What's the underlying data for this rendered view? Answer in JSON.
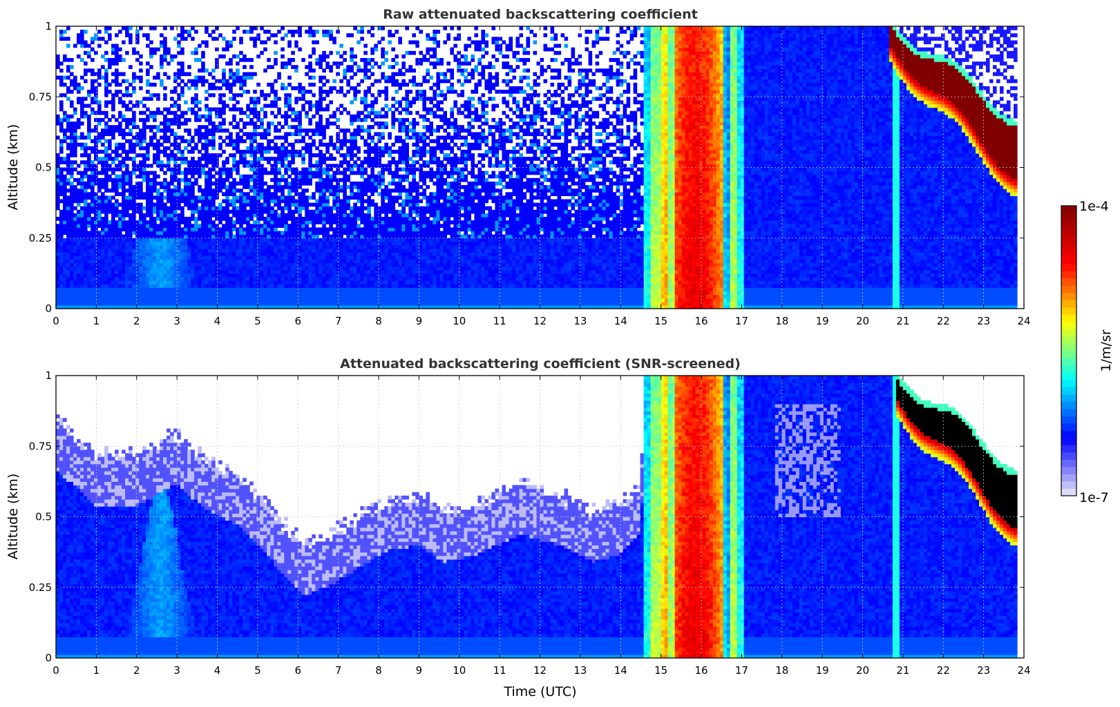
{
  "chart_data": [
    {
      "type": "heatmap",
      "title": "Raw attenuated backscattering coefficient",
      "ylabel": "Altitude (km)",
      "xlim": [
        0,
        24
      ],
      "ylim": [
        0,
        1
      ],
      "x_ticks": [
        "0",
        "1",
        "2",
        "3",
        "4",
        "5",
        "6",
        "7",
        "8",
        "9",
        "10",
        "11",
        "12",
        "13",
        "14",
        "15",
        "16",
        "17",
        "18",
        "19",
        "20",
        "21",
        "22",
        "23",
        "24"
      ],
      "y_ticks": [
        "0",
        "0.25",
        "0.5",
        "0.75",
        "1"
      ],
      "grid": true,
      "data_extent_x": [
        0,
        23.8
      ],
      "features": [
        {
          "name": "background",
          "x": [
            0,
            23.8
          ],
          "level": 0.22
        },
        {
          "name": "noise",
          "x": [
            0,
            14.6
          ],
          "y": [
            0.25,
            1.0
          ]
        },
        {
          "name": "boundary layer plume",
          "x": [
            1.6,
            3.4
          ],
          "y": [
            0,
            0.58
          ]
        },
        {
          "name": "cloud/precipitation",
          "x": [
            14.55,
            17.05
          ],
          "y": [
            0,
            1.0
          ],
          "level": 0.8
        },
        {
          "name": "descending cloud layer",
          "x": [
            20.7,
            23.8
          ],
          "y_top": [
            1.0,
            0.66
          ],
          "y_base": [
            0.98,
            0.47
          ],
          "level": 1.0
        }
      ]
    },
    {
      "type": "heatmap",
      "title": "Attenuated backscattering coefficient (SNR-screened)",
      "xlabel": "Time (UTC)",
      "ylabel": "Altitude (km)",
      "xlim": [
        0,
        24
      ],
      "ylim": [
        0,
        1
      ],
      "x_ticks": [
        "0",
        "1",
        "2",
        "3",
        "4",
        "5",
        "6",
        "7",
        "8",
        "9",
        "10",
        "11",
        "12",
        "13",
        "14",
        "15",
        "16",
        "17",
        "18",
        "19",
        "20",
        "21",
        "22",
        "23",
        "24"
      ],
      "y_ticks": [
        "0",
        "0.25",
        "0.5",
        "0.75",
        "1"
      ],
      "grid": true,
      "data_extent_x": [
        0,
        23.8
      ],
      "screened_top_km": [
        [
          0,
          0.85
        ],
        [
          1,
          0.72
        ],
        [
          2,
          0.72
        ],
        [
          3,
          0.8
        ],
        [
          3.6,
          0.72
        ],
        [
          4.5,
          0.65
        ],
        [
          5.2,
          0.55
        ],
        [
          5.8,
          0.45
        ],
        [
          6.2,
          0.4
        ],
        [
          6.8,
          0.44
        ],
        [
          7.5,
          0.5
        ],
        [
          8.2,
          0.56
        ],
        [
          9,
          0.58
        ],
        [
          9.6,
          0.52
        ],
        [
          10.5,
          0.55
        ],
        [
          11.5,
          0.62
        ],
        [
          12.5,
          0.58
        ],
        [
          13.3,
          0.52
        ],
        [
          14.0,
          0.55
        ],
        [
          14.5,
          0.62
        ],
        [
          14.6,
          1.0
        ],
        [
          23.8,
          1.0
        ]
      ],
      "clear_patch": {
        "x": [
          17.8,
          19.5
        ],
        "y": [
          0.5,
          0.9
        ]
      },
      "features": [
        {
          "name": "cloud/precipitation",
          "x": [
            14.55,
            17.05
          ],
          "y": [
            0,
            1.0
          ],
          "level": 0.8
        },
        {
          "name": "descending cloud layer (saturated)",
          "x": [
            20.8,
            23.8
          ],
          "y_top": [
            1.0,
            0.66
          ],
          "y_base": [
            0.98,
            0.47
          ],
          "level": 1.0
        }
      ]
    }
  ],
  "colorbar": {
    "label": "1/m/sr",
    "max_label": "1e-4",
    "min_label": "1e-7",
    "colormap": [
      "#ebebfa",
      "#0000ff",
      "#00ffff",
      "#ffff00",
      "#ff0000",
      "#800000"
    ]
  },
  "colors": {
    "title": "#333333",
    "grid": "#c8c8c8",
    "saturated": "#000000"
  }
}
